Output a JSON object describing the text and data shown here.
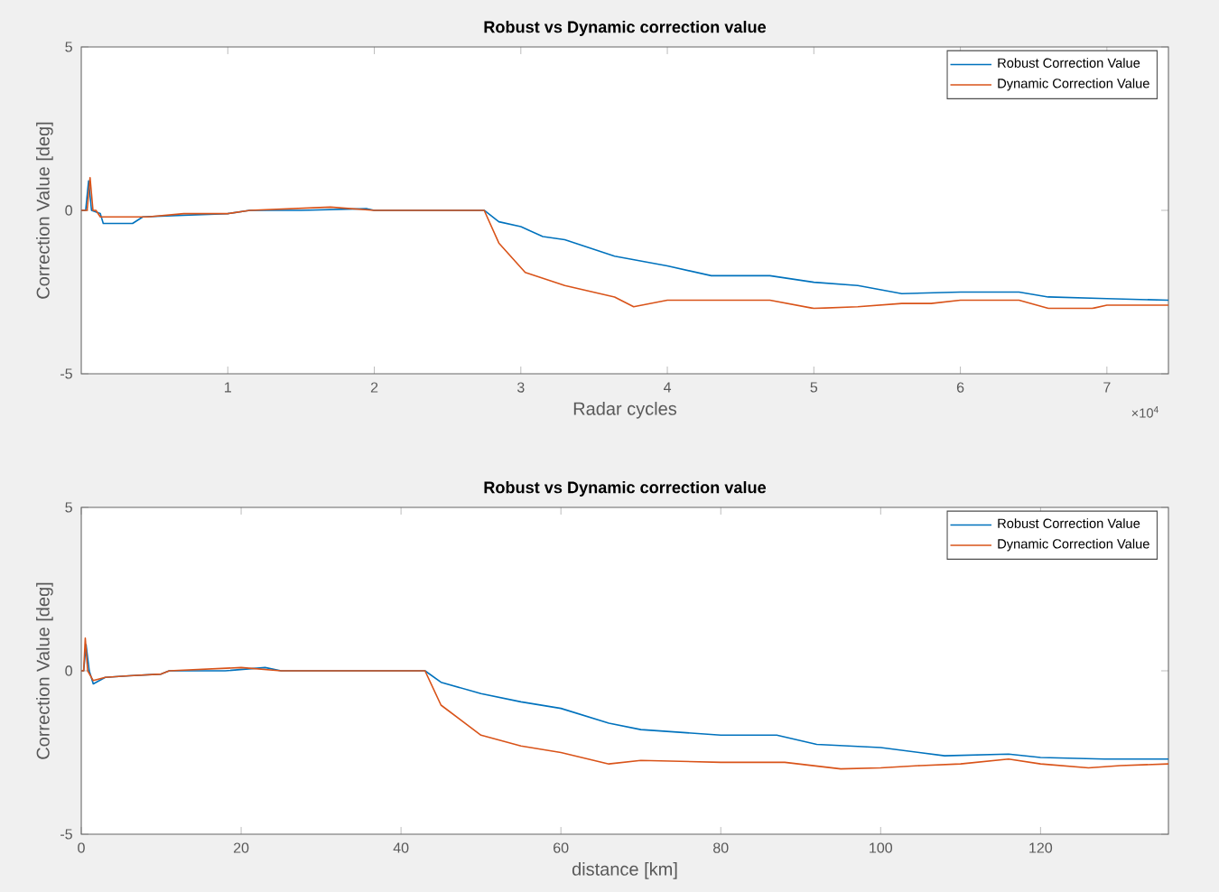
{
  "chart_data": [
    {
      "type": "line",
      "title": "Robust vs Dynamic correction value",
      "xlabel": "Radar cycles",
      "ylabel": "Correction Value [deg]",
      "xlim": [
        0,
        7.42
      ],
      "ylim": [
        -5,
        5
      ],
      "xticks": [
        1,
        2,
        3,
        4,
        5,
        6,
        7
      ],
      "yticks": [
        -5,
        0,
        5
      ],
      "annotations": [
        "×10$^{4}$"
      ],
      "legend": "top right",
      "grid": false,
      "series": [
        {
          "name": "Robust Correction Value",
          "color": "#0072bd",
          "x": [
            0,
            0.03,
            0.05,
            0.07,
            0.13,
            0.15,
            0.35,
            0.42,
            0.7,
            1.0,
            1.15,
            1.5,
            1.95,
            2.0,
            2.75,
            2.85,
            3.0,
            3.15,
            3.3,
            3.64,
            4.0,
            4.3,
            4.7,
            5.0,
            5.3,
            5.6,
            6.0,
            6.4,
            6.6,
            7.0,
            7.42
          ],
          "values": [
            0,
            0,
            0.9,
            0,
            -0.1,
            -0.4,
            -0.4,
            -0.2,
            -0.15,
            -0.1,
            0,
            0,
            0.05,
            0,
            0,
            -0.35,
            -0.5,
            -0.8,
            -0.9,
            -1.4,
            -1.7,
            -2.0,
            -2.0,
            -2.2,
            -2.3,
            -2.55,
            -2.5,
            -2.5,
            -2.65,
            -2.7,
            -2.75
          ]
        },
        {
          "name": "Dynamic Correction Value",
          "color": "#d95319",
          "x": [
            0,
            0.04,
            0.06,
            0.08,
            0.1,
            0.13,
            0.45,
            0.7,
            1.0,
            1.15,
            1.7,
            2.0,
            2.75,
            2.8,
            2.85,
            3.03,
            3.3,
            3.64,
            3.77,
            4.0,
            4.7,
            5.0,
            5.3,
            5.6,
            5.8,
            6.0,
            6.4,
            6.6,
            6.9,
            7.0,
            7.42
          ],
          "values": [
            0,
            0,
            1.0,
            0,
            0,
            -0.2,
            -0.2,
            -0.1,
            -0.1,
            0,
            0.1,
            0,
            0,
            -0.5,
            -1.0,
            -1.9,
            -2.3,
            -2.65,
            -2.95,
            -2.75,
            -2.75,
            -3.0,
            -2.95,
            -2.85,
            -2.85,
            -2.75,
            -2.75,
            -3.0,
            -3.0,
            -2.9,
            -2.9
          ]
        }
      ]
    },
    {
      "type": "line",
      "title": "Robust vs Dynamic correction value",
      "xlabel": "distance [km]",
      "ylabel": "Correction Value [deg]",
      "xlim": [
        0,
        136
      ],
      "ylim": [
        -5,
        5
      ],
      "xticks": [
        0,
        20,
        40,
        60,
        80,
        100,
        120
      ],
      "yticks": [
        -5,
        0,
        5
      ],
      "legend": "top right",
      "grid": false,
      "series": [
        {
          "name": "Robust Correction Value",
          "color": "#0072bd",
          "x": [
            0,
            0.3,
            0.6,
            1,
            1.5,
            3,
            6,
            10,
            11,
            18,
            23,
            25,
            43,
            45,
            50,
            55,
            60,
            66,
            70,
            80,
            87,
            92,
            100,
            108,
            116,
            120,
            128,
            136
          ],
          "values": [
            0,
            0,
            0.8,
            0,
            -0.4,
            -0.2,
            -0.15,
            -0.1,
            0,
            0,
            0.1,
            0,
            0,
            -0.35,
            -0.7,
            -0.95,
            -1.15,
            -1.6,
            -1.8,
            -1.97,
            -1.97,
            -2.25,
            -2.35,
            -2.6,
            -2.55,
            -2.65,
            -2.7,
            -2.7
          ]
        },
        {
          "name": "Dynamic Correction Value",
          "color": "#d95319",
          "x": [
            0,
            0.3,
            0.5,
            0.8,
            1.5,
            3,
            6,
            10,
            11,
            20,
            25,
            43,
            45,
            50,
            55,
            60,
            66,
            70,
            80,
            88,
            95,
            100,
            105,
            110,
            116,
            120,
            126,
            130,
            136
          ],
          "values": [
            0,
            0,
            1.0,
            0,
            -0.3,
            -0.2,
            -0.15,
            -0.1,
            0,
            0.1,
            0,
            0,
            -1.05,
            -1.97,
            -2.3,
            -2.5,
            -2.85,
            -2.74,
            -2.8,
            -2.8,
            -3.0,
            -2.97,
            -2.9,
            -2.85,
            -2.7,
            -2.85,
            -2.97,
            -2.9,
            -2.85
          ]
        }
      ]
    }
  ]
}
